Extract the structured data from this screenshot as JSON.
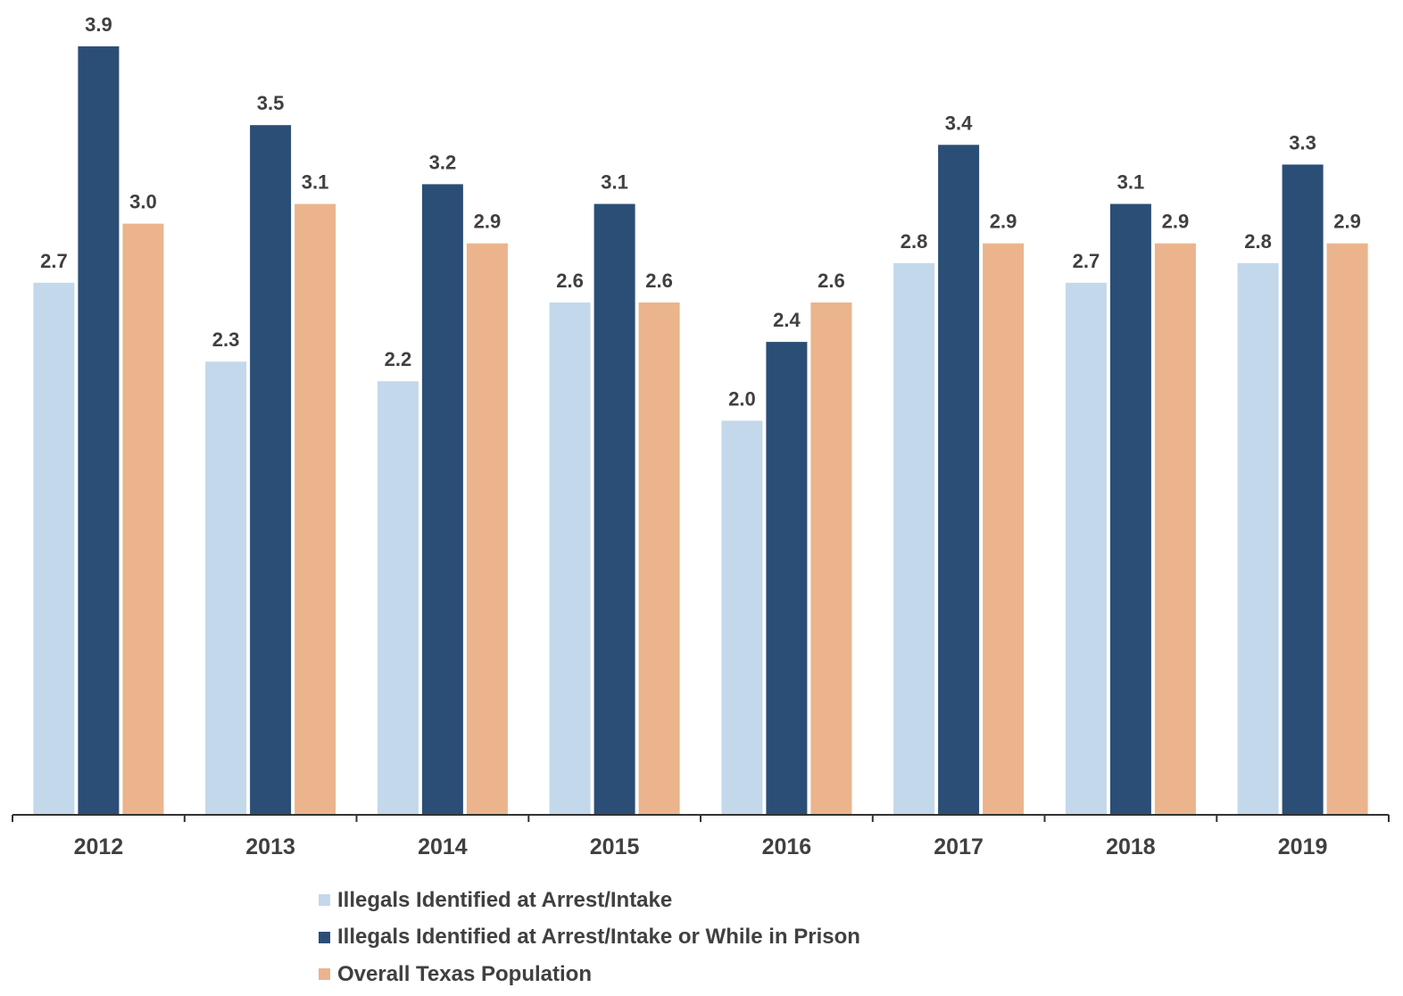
{
  "chart_data": {
    "type": "bar",
    "title": "",
    "xlabel": "",
    "ylabel": "",
    "ylim": [
      0,
      4.0
    ],
    "grid": false,
    "legend_position": "bottom",
    "categories": [
      "2012",
      "2013",
      "2014",
      "2015",
      "2016",
      "2017",
      "2018",
      "2019"
    ],
    "series": [
      {
        "name": "Illegals Identified at Arrest/Intake",
        "color": "#c3d8ea",
        "values": [
          2.7,
          2.3,
          2.2,
          2.6,
          2.0,
          2.8,
          2.7,
          2.8
        ]
      },
      {
        "name": "Illegals Identified at Arrest/Intake or While in Prison",
        "color": "#2b4e76",
        "values": [
          3.9,
          3.5,
          3.2,
          3.1,
          2.4,
          3.4,
          3.1,
          3.3
        ]
      },
      {
        "name": "Overall Texas Population",
        "color": "#ebb48c",
        "values": [
          3.0,
          3.1,
          2.9,
          2.6,
          2.6,
          2.9,
          2.9,
          2.9
        ]
      }
    ]
  }
}
